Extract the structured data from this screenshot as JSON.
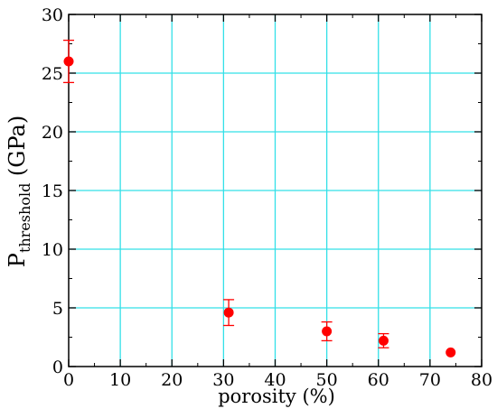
{
  "chart_data": {
    "type": "scatter",
    "xlabel": "porosity (%)",
    "ylabel": {
      "main": "P",
      "subscript": "threshold",
      "unit": " (GPa)"
    },
    "xlim": [
      0,
      80
    ],
    "ylim": [
      0,
      30
    ],
    "x_ticks": [
      "0",
      "10",
      "20",
      "30",
      "40",
      "50",
      "60",
      "70",
      "80"
    ],
    "y_ticks": [
      "0",
      "5",
      "10",
      "15",
      "20",
      "25",
      "30"
    ],
    "grid": true,
    "colors": {
      "marker": "#ff0000",
      "error_bar": "#ff0000",
      "grid": "#33e0e8",
      "axis": "#000000"
    },
    "points": [
      {
        "x": 0,
        "y": 26.0,
        "err": 1.8
      },
      {
        "x": 31,
        "y": 4.6,
        "err": 1.1
      },
      {
        "x": 50,
        "y": 3.0,
        "err": 0.8
      },
      {
        "x": 61,
        "y": 2.2,
        "err": 0.6
      },
      {
        "x": 74,
        "y": 1.2,
        "err": 0.0
      }
    ]
  }
}
